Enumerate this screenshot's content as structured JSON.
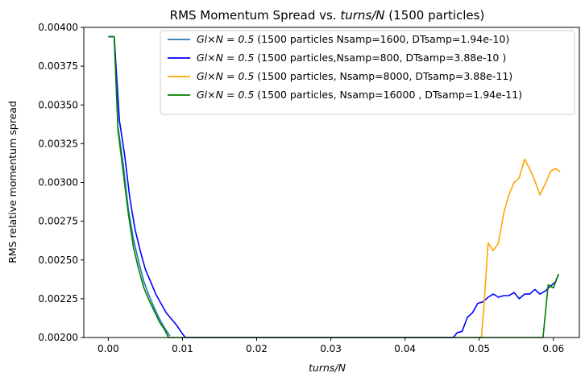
{
  "chart_data": {
    "type": "line",
    "title_prefix": "RMS Momentum Spread vs. ",
    "title_italic": "turns/N",
    "title_suffix": " (1500 particles)",
    "xlabel": "turns/N",
    "ylabel": "RMS relative momentum spread",
    "xlim": [
      -0.0033,
      0.0635
    ],
    "ylim": [
      0.002,
      0.004
    ],
    "x_ticks": [
      0.0,
      0.01,
      0.02,
      0.03,
      0.04,
      0.05,
      0.06
    ],
    "x_tick_labels": [
      "0.00",
      "0.01",
      "0.02",
      "0.03",
      "0.04",
      "0.05",
      "0.06"
    ],
    "y_ticks": [
      0.002,
      0.00225,
      0.0025,
      0.00275,
      0.003,
      0.00325,
      0.0035,
      0.00375,
      0.004
    ],
    "y_tick_labels": [
      "0.00200",
      "0.00225",
      "0.00250",
      "0.00275",
      "0.00300",
      "0.00325",
      "0.00350",
      "0.00375",
      "0.00400"
    ],
    "grid": false,
    "legend_position": "top-right",
    "series": [
      {
        "name": "G_l × N = 0.5  (1500 particles Nsamp=1600, DTsamp=1.94e-10)",
        "legend_math": "Gl×N = 0.5",
        "legend_rest": "  (1500 particles Nsamp=1600, DTsamp=1.94e-10)",
        "color": "#1f77b4",
        "x": [
          0.0,
          0.0008,
          0.0013,
          0.002,
          0.0027,
          0.0034,
          0.0041,
          0.0048,
          0.0055,
          0.0062,
          0.0069,
          0.0076,
          0.0083
        ],
        "y": [
          0.00394,
          0.00394,
          0.00336,
          0.00312,
          0.00283,
          0.00263,
          0.00249,
          0.00236,
          0.00227,
          0.00219,
          0.00212,
          0.00206,
          0.00201
        ]
      },
      {
        "name": "G_l × N = 0.5 (1500 particles,Nsamp=800, DTsamp=3.88e-10 )",
        "legend_math": "Gl×N = 0.5",
        "legend_rest": " (1500 particles,Nsamp=800, DTsamp=3.88e-10 )",
        "color": "#0000ff",
        "x": [
          0.0,
          0.0008,
          0.0015,
          0.0022,
          0.0029,
          0.0036,
          0.0043,
          0.005,
          0.0057,
          0.0064,
          0.0071,
          0.0078,
          0.0085,
          0.0092,
          0.0099,
          0.0104,
          0.0465,
          0.047,
          0.0477,
          0.0484,
          0.0491,
          0.0498,
          0.0505,
          0.0512,
          0.0519,
          0.0526,
          0.0533,
          0.054,
          0.0547,
          0.0554,
          0.0561,
          0.0568,
          0.0575,
          0.0582,
          0.0589,
          0.0596,
          0.0603,
          0.0607
        ],
        "y": [
          0.00394,
          0.00394,
          0.0034,
          0.00318,
          0.0029,
          0.0027,
          0.00256,
          0.00244,
          0.00236,
          0.00228,
          0.00222,
          0.00216,
          0.00212,
          0.00208,
          0.00203,
          0.002,
          0.002,
          0.00203,
          0.00204,
          0.00213,
          0.00216,
          0.00222,
          0.00223,
          0.00226,
          0.00228,
          0.00226,
          0.00227,
          0.00227,
          0.00229,
          0.00225,
          0.00228,
          0.00228,
          0.00231,
          0.00228,
          0.0023,
          0.00233,
          0.00236,
          0.00241
        ]
      },
      {
        "name": "G_l × N = 0.5 (1500 particles, Nsamp=8000, DTsamp=3.88e-11)",
        "legend_math": "Gl×N = 0.5",
        "legend_rest": " (1500 particles, Nsamp=8000, DTsamp=3.88e-11)",
        "color": "#ffa500",
        "x": [
          0.0503,
          0.0507,
          0.0512,
          0.0519,
          0.0526,
          0.0533,
          0.054,
          0.0547,
          0.0554,
          0.0561,
          0.0568,
          0.0575,
          0.0582,
          0.0589,
          0.0596,
          0.0603,
          0.0609
        ],
        "y": [
          0.002,
          0.00225,
          0.00261,
          0.00256,
          0.00261,
          0.0028,
          0.00292,
          0.003,
          0.00303,
          0.00315,
          0.00309,
          0.00301,
          0.00292,
          0.00299,
          0.00307,
          0.00309,
          0.00307
        ]
      },
      {
        "name": "G_l × N = 0.5 (1500 particles, Nsamp=16000 , DTsamp=1.94e-11)",
        "legend_math": "Gl×N = 0.5",
        "legend_rest": " (1500 particles, Nsamp=16000 , DTsamp=1.94e-11)",
        "color": "#008000",
        "x": [
          0.0,
          0.0008,
          0.0013,
          0.002,
          0.0027,
          0.0034,
          0.0041,
          0.0048,
          0.0055,
          0.0062,
          0.0069,
          0.0076,
          0.0081,
          0.0558,
          0.0565,
          0.0572,
          0.0579,
          0.0586,
          0.0593,
          0.06,
          0.0607
        ],
        "y": [
          0.00394,
          0.00394,
          0.00334,
          0.00307,
          0.0028,
          0.00258,
          0.00244,
          0.00232,
          0.00224,
          0.00217,
          0.0021,
          0.00205,
          0.002,
          0.002,
          0.002,
          0.002,
          0.002,
          0.002,
          0.00234,
          0.00232,
          0.00241
        ]
      }
    ]
  }
}
